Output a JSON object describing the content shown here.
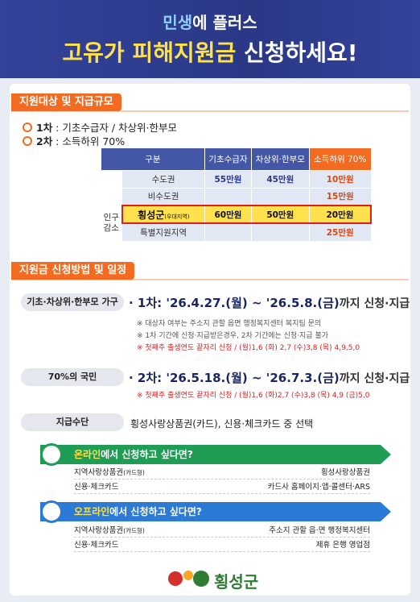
{
  "header": {
    "kicker": [
      "민생",
      "에 플러스"
    ],
    "title": [
      "고유가 피해지원금",
      "신청하세요!"
    ]
  },
  "section1": {
    "tab": "지원대상 및 지급규모",
    "targets": [
      {
        "label": "1차",
        "text": " : 기초수급자  /  차상위·한부모"
      },
      {
        "label": "2차",
        "text": " :  소득하위 70%"
      }
    ],
    "table": {
      "headers": [
        "구분",
        "기초수급자",
        "차상위·한부모",
        "소득하위 70%"
      ],
      "group": "인구감소",
      "rows": [
        {
          "region": "수도권",
          "cells": [
            "55만원",
            "45만원",
            "10만원"
          ]
        },
        {
          "region": "비수도권",
          "cells": [
            null,
            null,
            "15만원"
          ]
        },
        {
          "region": "횡성군",
          "note": "(우대지역)",
          "cells": [
            "60만원",
            "50만원",
            "20만원"
          ]
        },
        {
          "region": "특별지원지역",
          "cells": [
            null,
            null,
            "25만원"
          ]
        }
      ]
    }
  },
  "section2": {
    "tab": "지원금 신청방법 및 일정",
    "rounds": [
      {
        "target": "기초·차상위·한부모 가구",
        "schedule": "· 1차: '26.4.27.(월) ~ '26.5.8.(금)",
        "suffix": "까지 신청·지급",
        "notes": [
          "※ 대상자 여부는 주소지 관할 읍면 행정복지센터 복지팀 문의",
          "※ 1차 기간에 신청·지급받은경우, 2차 기간에는 신청·지급 불가"
        ],
        "alert": "※ 첫째주 출생연도 끝자리 신청 / (월)1,6 (화) 2,7 (수)3,8 (목) 4,9,5,0"
      },
      {
        "target": "70%의 국민",
        "schedule": "· 2차: '26.5.18.(월) ~ '26.7.3.(금)",
        "suffix": "까지 신청·지급",
        "alert": "※ 첫째주 출생연도 끝자리 신청 / (월)1,6 (화)2,7 (수)3,8 (목) 4,9 (금)5,0"
      }
    ],
    "payment": {
      "label": "지급수단",
      "text": "횡성사랑상품권(카드), 신용·체크카드 중 선택"
    },
    "channels": [
      {
        "highlight": "온라인",
        "title": "에서 신청하고 싶다면?",
        "rows": [
          {
            "method": "지역사랑상품권",
            "note": "(카드형)",
            "where": "횡성사랑상품권"
          },
          {
            "method": "신용·체크카드",
            "where": "카드사 홈페이지·앱·콜센터·ARS"
          }
        ]
      },
      {
        "highlight": "오프라인",
        "title": "에서 신청하고 싶다면?",
        "rows": [
          {
            "method": "지역사랑상품권",
            "note": "(카드형)",
            "where": "주소지 관할 읍·면 행정복지센터"
          },
          {
            "method": "신용·체크카드",
            "where": "제휴 은행 영업점"
          }
        ]
      }
    ]
  },
  "footer": {
    "org": "횡성군"
  }
}
